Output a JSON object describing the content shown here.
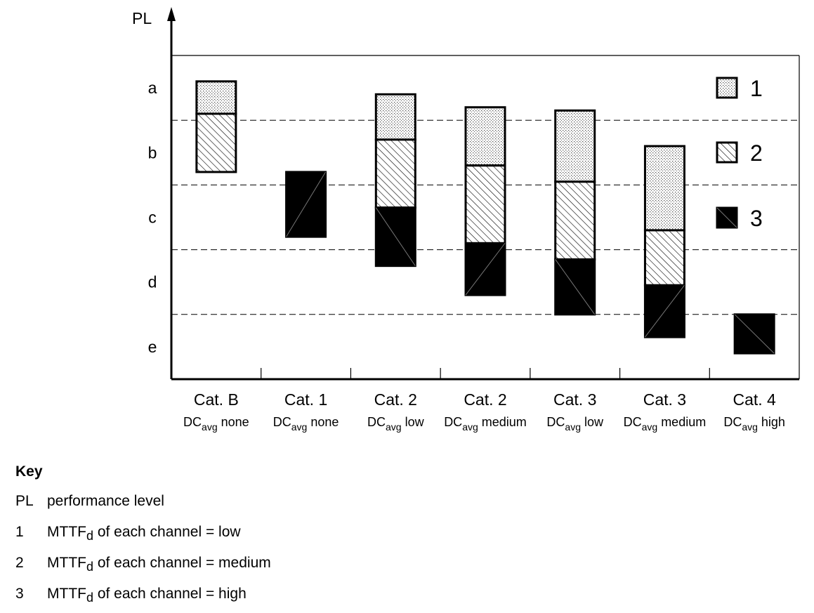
{
  "chart_data": {
    "type": "bar",
    "title": "",
    "ylabel": "PL",
    "xlabel": "",
    "pl_levels": [
      "a",
      "b",
      "c",
      "d",
      "e"
    ],
    "categories": [
      {
        "cat": "Cat. B",
        "dc_prefix": "DC",
        "dc_sub": "avg",
        "dc_level": " none"
      },
      {
        "cat": "Cat. 1",
        "dc_prefix": "DC",
        "dc_sub": "avg",
        "dc_level": " none"
      },
      {
        "cat": "Cat. 2",
        "dc_prefix": "DC",
        "dc_sub": "avg",
        "dc_level": " low"
      },
      {
        "cat": "Cat. 2",
        "dc_prefix": "DC",
        "dc_sub": "avg",
        "dc_level": " medium"
      },
      {
        "cat": "Cat. 3",
        "dc_prefix": "DC",
        "dc_sub": "avg",
        "dc_level": " low"
      },
      {
        "cat": "Cat. 3",
        "dc_prefix": "DC",
        "dc_sub": "avg",
        "dc_level": " medium"
      },
      {
        "cat": "Cat. 4",
        "dc_prefix": "DC",
        "dc_sub": "avg",
        "dc_level": " high"
      }
    ],
    "series_labels": [
      "1",
      "2",
      "3"
    ],
    "pl_scale_note": "y values in PL units: 0 = top of a, 5 = bottom of e",
    "bars": [
      {
        "segments": [
          {
            "series": "1",
            "from": 0.4,
            "to": 0.9
          },
          {
            "series": "2",
            "from": 0.9,
            "to": 1.8
          }
        ]
      },
      {
        "segments": [
          {
            "series": "3",
            "from": 1.8,
            "to": 2.8
          }
        ]
      },
      {
        "segments": [
          {
            "series": "1",
            "from": 0.6,
            "to": 1.3
          },
          {
            "series": "2",
            "from": 1.3,
            "to": 2.35
          },
          {
            "series": "3",
            "from": 2.35,
            "to": 3.25
          }
        ]
      },
      {
        "segments": [
          {
            "series": "1",
            "from": 0.8,
            "to": 1.7
          },
          {
            "series": "2",
            "from": 1.7,
            "to": 2.9
          },
          {
            "series": "3",
            "from": 2.9,
            "to": 3.7
          }
        ]
      },
      {
        "segments": [
          {
            "series": "1",
            "from": 0.85,
            "to": 1.95
          },
          {
            "series": "2",
            "from": 1.95,
            "to": 3.15
          },
          {
            "series": "3",
            "from": 3.15,
            "to": 4.0
          }
        ]
      },
      {
        "segments": [
          {
            "series": "1",
            "from": 1.4,
            "to": 2.7
          },
          {
            "series": "2",
            "from": 2.7,
            "to": 3.55
          },
          {
            "series": "3",
            "from": 3.55,
            "to": 4.35
          }
        ]
      },
      {
        "segments": [
          {
            "series": "3",
            "from": 4.0,
            "to": 4.6
          }
        ]
      }
    ],
    "grid": "dashed at PL boundaries",
    "legend": "top-right"
  },
  "key": {
    "title": "Key",
    "rows": [
      {
        "symbol": "PL",
        "text": "performance level"
      },
      {
        "symbol": "1",
        "mttf": "MTTF",
        "mttf_sub": "d",
        "text": " of each channel = low"
      },
      {
        "symbol": "2",
        "mttf": "MTTF",
        "mttf_sub": "d",
        "text": " of each channel = medium"
      },
      {
        "symbol": "3",
        "mttf": "MTTF",
        "mttf_sub": "d",
        "text": " of each channel = high"
      }
    ]
  }
}
